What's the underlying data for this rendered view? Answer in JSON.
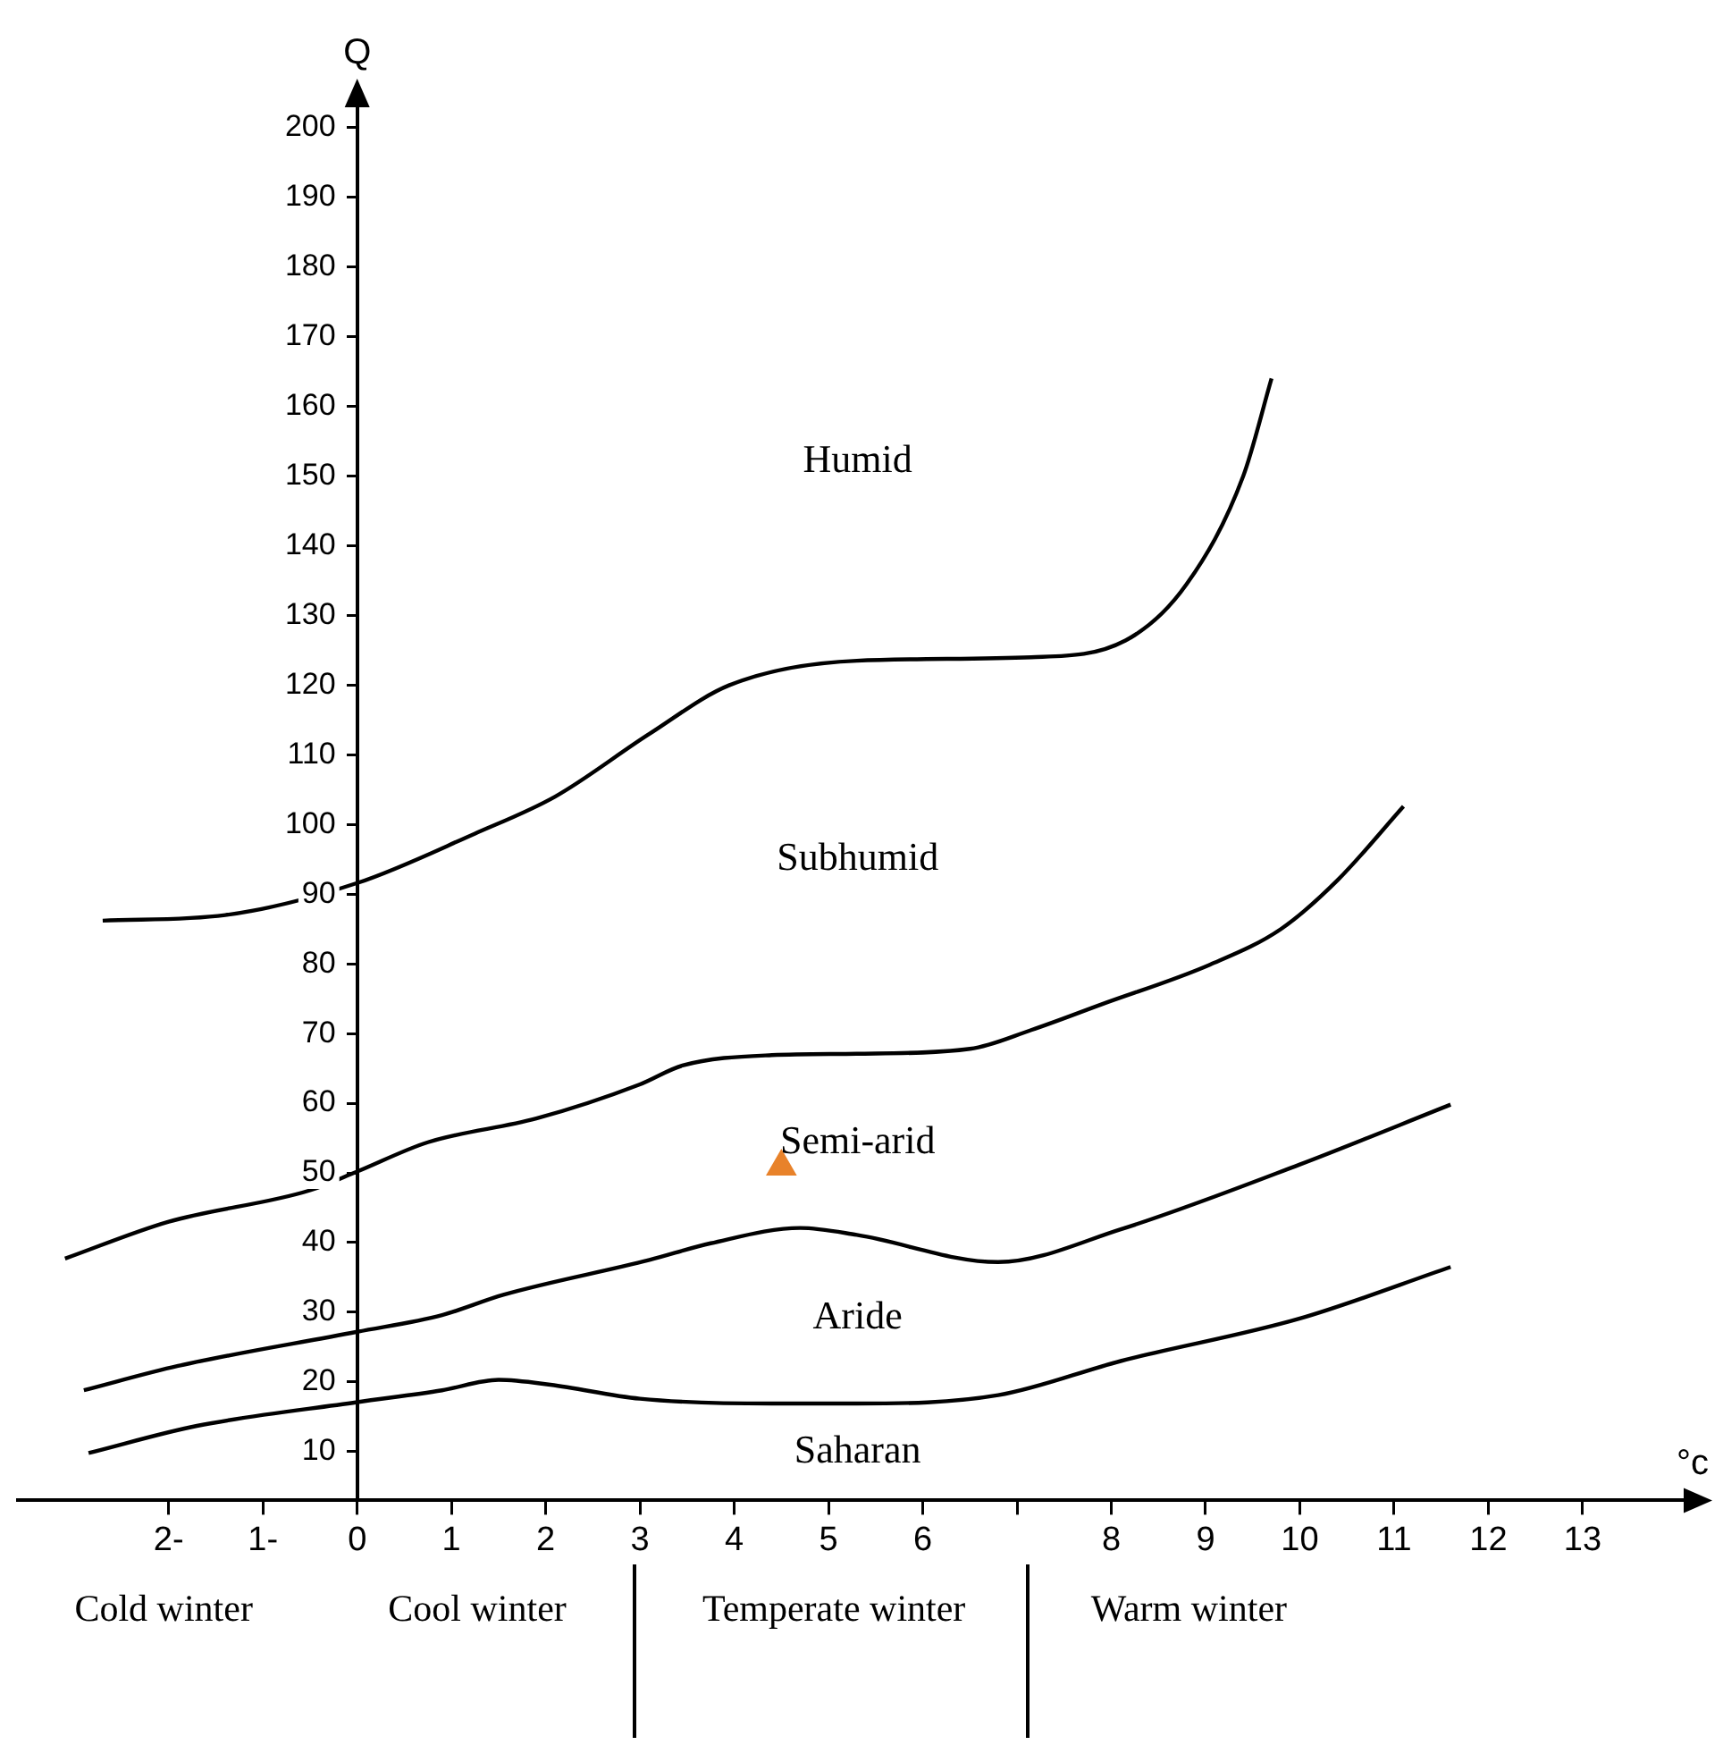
{
  "chart_data": {
    "type": "line",
    "xlabel": "°c",
    "ylabel": "Q",
    "xlim": [
      -3.6,
      14.3
    ],
    "ylim": [
      3,
      206
    ],
    "xticks": [
      {
        "value": -2,
        "label": "2-"
      },
      {
        "value": -1,
        "label": "1-"
      },
      0,
      1,
      2,
      3,
      4,
      5,
      6,
      {
        "value": 7,
        "label": null
      },
      8,
      9,
      10,
      11,
      12,
      13
    ],
    "yticks": [
      10,
      20,
      30,
      40,
      50,
      60,
      70,
      80,
      90,
      100,
      110,
      120,
      130,
      140,
      150,
      160,
      170,
      180,
      190,
      200
    ],
    "grid": false,
    "legend": false,
    "marker": "none",
    "line_style": "solid",
    "series": [
      {
        "color": "#000000",
        "x": [
          -2.7,
          -1.4,
          0,
          1.25,
          2.1,
          3.1,
          3.95,
          5.3,
          7.15,
          8.15,
          8.8,
          9.4,
          9.7
        ],
        "values": [
          86.2,
          87,
          91.6,
          98.7,
          104,
          113,
          120,
          123.5,
          124,
          126.4,
          134.5,
          150,
          164
        ]
      },
      {
        "color": "#000000",
        "x": [
          -3.1,
          -2.0,
          -0.5,
          0,
          0.75,
          1.9,
          3.0,
          3.45,
          4.4,
          5.3,
          6.5,
          7.15,
          7.9,
          9.05,
          9.8,
          10.4,
          11.1
        ],
        "values": [
          37.7,
          43,
          47.5,
          50.2,
          54.4,
          57.8,
          62.7,
          65.4,
          66.9,
          67.1,
          67.8,
          70.5,
          74.2,
          79.9,
          85,
          92,
          102.6
        ]
      },
      {
        "color": "#000000",
        "x": [
          -2.9,
          -1.9,
          0,
          0.9,
          1.55,
          3.1,
          3.75,
          4.7,
          5.3,
          6.8,
          8.1,
          10.0,
          11.6
        ],
        "values": [
          18.8,
          22.3,
          27.2,
          29.6,
          32.5,
          37.5,
          39.9,
          42.1,
          41.1,
          37.2,
          41.9,
          51.2,
          59.8
        ]
      },
      {
        "color": "#000000",
        "x": [
          -2.85,
          -1.7,
          0,
          0.9,
          1.5,
          2.05,
          3.0,
          4.4,
          5.3,
          6.8,
          8.1,
          10.0,
          11.6
        ],
        "values": [
          9.8,
          13.7,
          17.1,
          18.8,
          20.3,
          19.6,
          17.6,
          16.9,
          16.9,
          18.1,
          23,
          29.1,
          36.5
        ]
      },
      {
        "type": "scatter",
        "marker": "triangle",
        "color": "#e8822a",
        "x": [
          4.5
        ],
        "values": [
          50.9
        ]
      }
    ],
    "annotations": [
      "Humid",
      "Subhumid",
      "Semi-arid",
      "Aride",
      "Saharan",
      "Cold winter",
      "Cool winter",
      "Temperate winter",
      "Warm winter"
    ]
  }
}
